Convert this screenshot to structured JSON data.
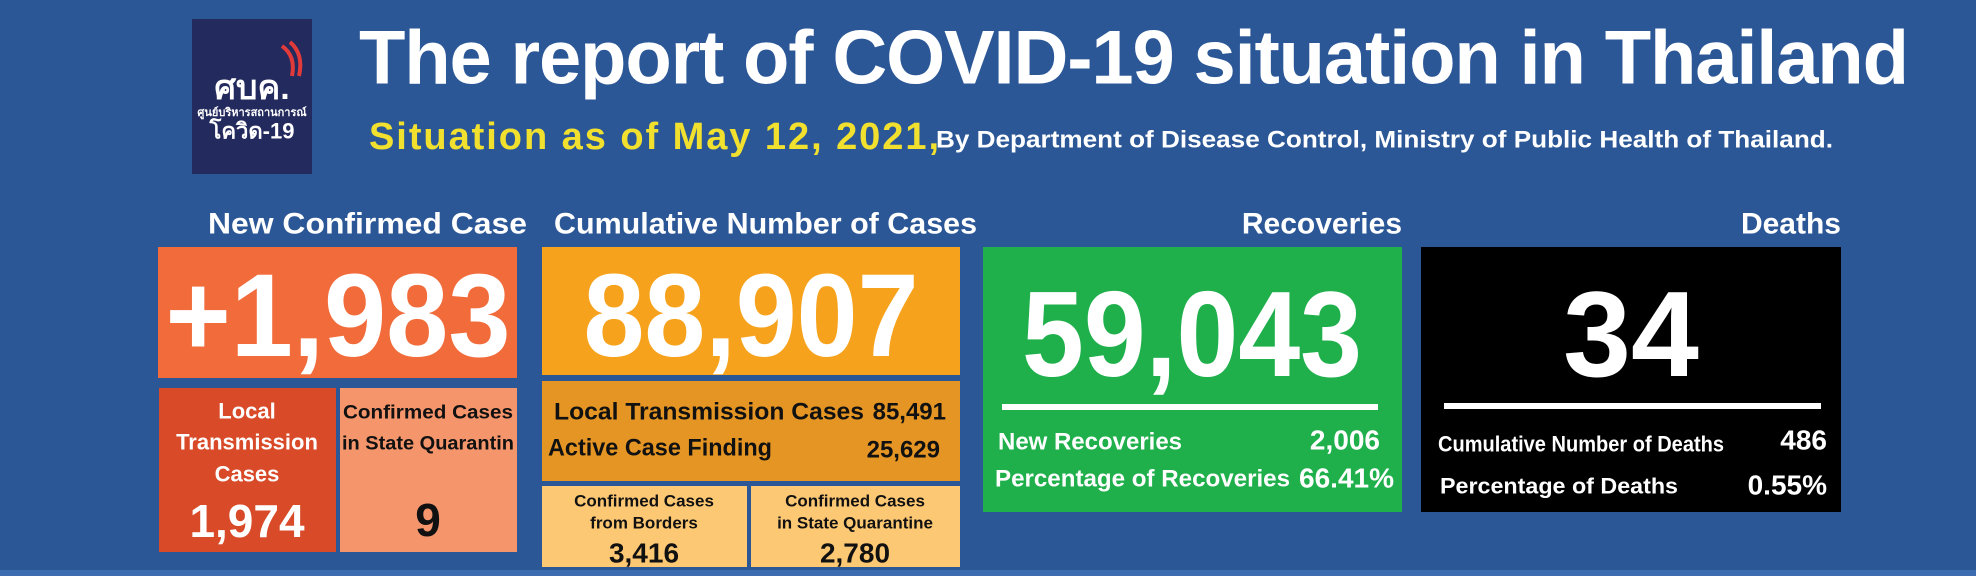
{
  "logo": {
    "abbr": "ศบค.",
    "name": "ศูนย์บริหารสถานการณ์",
    "sub": "โควิด-19"
  },
  "header": {
    "title": "The report of COVID-19 situation in Thailand",
    "date": "Situation as of May 12, 2021,",
    "source": "By Department of Disease Control, Ministry of Public Health of Thailand."
  },
  "new_cases": {
    "label": "New Confirmed Case",
    "value": "+1,983",
    "local": {
      "label_lines": [
        "Local",
        "Transmission",
        "Cases"
      ],
      "value": "1,974"
    },
    "quarantine": {
      "label_lines": [
        "Confirmed Cases",
        "in State Quarantin"
      ],
      "value": "9"
    }
  },
  "cumulative": {
    "label": "Cumulative Number of Cases",
    "value": "88,907",
    "local_transmission": {
      "label": "Local Transmission Cases",
      "value": "85,491"
    },
    "active_case_finding": {
      "label": "Active Case Finding",
      "value": "25,629"
    },
    "borders": {
      "label_lines": [
        "Confirmed Cases",
        "from Borders"
      ],
      "value": "3,416"
    },
    "state_quarantine": {
      "label_lines": [
        "Confirmed Cases",
        "in State Quarantine"
      ],
      "value": "2,780"
    }
  },
  "recoveries": {
    "label": "Recoveries",
    "value": "59,043",
    "new": {
      "label": "New Recoveries",
      "value": "2,006"
    },
    "percentage": {
      "label": "Percentage of Recoveries",
      "value": "66.41%"
    }
  },
  "deaths": {
    "label": "Deaths",
    "value": "34",
    "cumulative": {
      "label": "Cumulative Number of Deaths",
      "value": "486"
    },
    "percentage": {
      "label": "Percentage of Deaths",
      "value": "0.55%"
    }
  }
}
